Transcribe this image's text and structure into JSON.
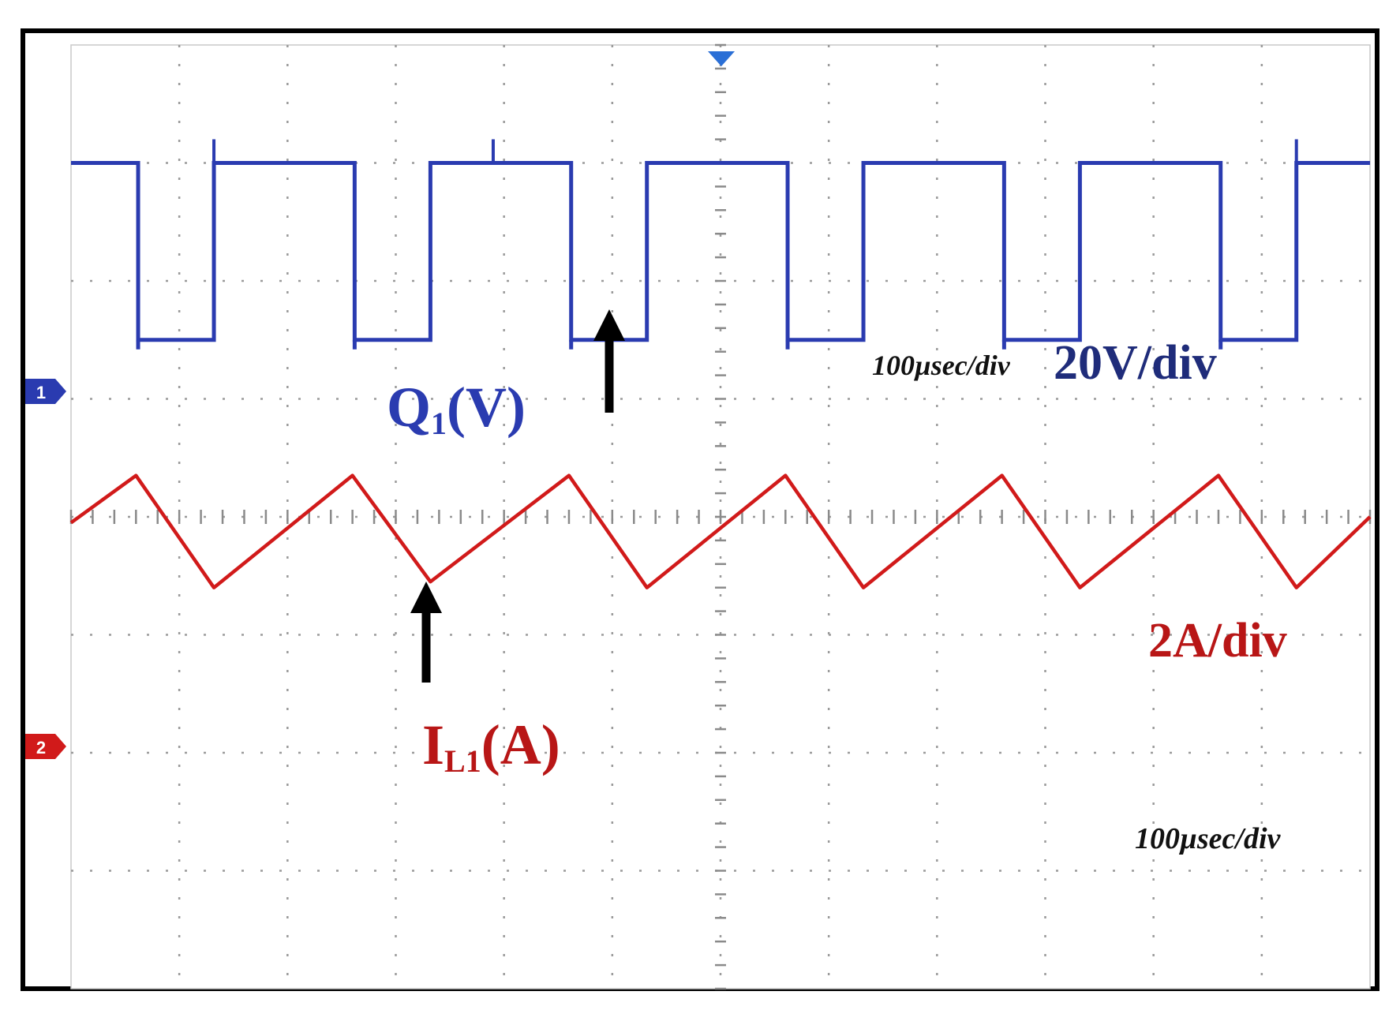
{
  "chart_data": {
    "type": "line",
    "title": "",
    "grid": true,
    "divisions": {
      "x": 12,
      "y": 8
    },
    "series": [
      {
        "name": "Q1(V)",
        "color": "#2a3bb0",
        "kind": "square",
        "unit_per_div": "20V/div",
        "high_div": 3.0,
        "low_div": 1.5,
        "edges": [
          {
            "down": 0.62,
            "up": 1.32
          },
          {
            "down": 2.62,
            "up": 3.32
          },
          {
            "down": 4.62,
            "up": 5.32
          },
          {
            "down": 6.62,
            "up": 7.32
          },
          {
            "down": 8.62,
            "up": 9.32
          },
          {
            "down": 10.62,
            "up": 11.32
          }
        ],
        "spikes": [
          1.32,
          3.9,
          11.32
        ]
      },
      {
        "name": "IL1(A)",
        "color": "#d11a1a",
        "kind": "sawtooth",
        "unit_per_div": "2A/div",
        "x": [
          0.0,
          0.6,
          1.32,
          2.6,
          3.32,
          4.6,
          5.32,
          6.6,
          7.32,
          8.6,
          9.32,
          10.6,
          11.32,
          12.0
        ],
        "y_div": [
          -0.05,
          0.35,
          -0.6,
          0.35,
          -0.55,
          0.35,
          -0.6,
          0.35,
          -0.6,
          0.35,
          -0.6,
          0.35,
          -0.6,
          0.0
        ]
      }
    ],
    "channel_markers": [
      "1",
      "2"
    ],
    "annotations": {
      "ch1_label": {
        "main": "Q",
        "sub": "1",
        "tail": "(V)"
      },
      "ch2_label": {
        "main": "I",
        "sub": "L1",
        "tail": "(A)"
      },
      "ch1_time_scale": "100µsec/div",
      "ch1_volt_scale": "20V/div",
      "ch2_amp_scale": "2A/div",
      "ch2_time_scale": "100µsec/div"
    }
  }
}
